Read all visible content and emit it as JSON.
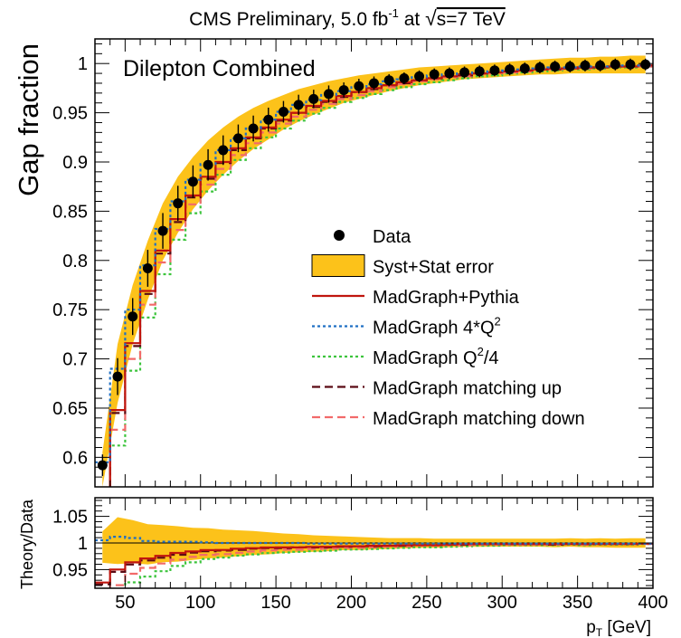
{
  "chart_data": {
    "type": "line",
    "title": "CMS Preliminary, 5.0 fb",
    "title_sup": "-1",
    "title_tail": " at ",
    "title_sqrt": "√",
    "title_energy": "s=7 TeV",
    "label": "Dilepton Combined",
    "ylabel": "Gap fraction",
    "ratio_ylabel": "Theory/Data",
    "xlabel": "p",
    "xlabel_sub": "T",
    "xlabel_unit": " [GeV]",
    "xlim": [
      30,
      400
    ],
    "ylim": [
      0.57,
      1.025
    ],
    "ratio_ylim": [
      0.915,
      1.085
    ],
    "x_ticks": [
      50,
      100,
      150,
      200,
      250,
      300,
      350,
      400
    ],
    "y_ticks": [
      0.6,
      0.65,
      0.7,
      0.75,
      0.8,
      0.85,
      0.9,
      0.95,
      1
    ],
    "ratio_y_ticks": [
      0.95,
      1,
      1.05
    ],
    "colors": {
      "band": "#fcc21a",
      "data": "#000000",
      "madgraph_pythia": "#c0150e",
      "q2x4": "#1f6fc4",
      "q2div4": "#3cc43c",
      "matching_up": "#5a0a14",
      "matching_down": "#f26a6a"
    },
    "legend": {
      "placement": "right",
      "entries": [
        {
          "key": "data",
          "label": "Data"
        },
        {
          "key": "band",
          "label": "Syst+Stat error"
        },
        {
          "key": "madgraph_pythia",
          "label": "MadGraph+Pythia"
        },
        {
          "key": "q2x4",
          "label": "MadGraph 4*Q",
          "sup": "2"
        },
        {
          "key": "q2div4",
          "label": "MadGraph Q",
          "sup": "2",
          "tail": "/4"
        },
        {
          "key": "matching_up",
          "label": "MadGraph matching up"
        },
        {
          "key": "matching_down",
          "label": "MadGraph matching down"
        }
      ]
    },
    "x": [
      35,
      45,
      55,
      65,
      75,
      85,
      95,
      105,
      115,
      125,
      135,
      145,
      155,
      165,
      175,
      185,
      195,
      205,
      215,
      225,
      235,
      245,
      255,
      265,
      275,
      285,
      295,
      305,
      315,
      325,
      335,
      345,
      355,
      365,
      375,
      385,
      395
    ],
    "series": [
      {
        "key": "data",
        "style": "points",
        "values": [
          0.592,
          0.682,
          0.743,
          0.792,
          0.83,
          0.858,
          0.88,
          0.897,
          0.912,
          0.924,
          0.934,
          0.943,
          0.951,
          0.958,
          0.964,
          0.969,
          0.973,
          0.977,
          0.98,
          0.983,
          0.985,
          0.987,
          0.989,
          0.99,
          0.991,
          0.992,
          0.993,
          0.994,
          0.995,
          0.996,
          0.997,
          0.997,
          0.998,
          0.998,
          0.999,
          0.999,
          0.999
        ]
      },
      {
        "key": "band",
        "style": "band",
        "lower": [
          0.57,
          0.655,
          0.715,
          0.76,
          0.8,
          0.828,
          0.852,
          0.871,
          0.887,
          0.901,
          0.913,
          0.923,
          0.933,
          0.941,
          0.948,
          0.954,
          0.96,
          0.964,
          0.968,
          0.972,
          0.975,
          0.978,
          0.98,
          0.982,
          0.984,
          0.985,
          0.986,
          0.987,
          0.988,
          0.989,
          0.989,
          0.99,
          0.99,
          0.99,
          0.99,
          0.99,
          0.99
        ],
        "upper": [
          0.605,
          0.715,
          0.775,
          0.82,
          0.858,
          0.885,
          0.905,
          0.922,
          0.935,
          0.946,
          0.955,
          0.962,
          0.968,
          0.974,
          0.978,
          0.982,
          0.985,
          0.988,
          0.99,
          0.992,
          0.994,
          0.996,
          0.997,
          0.998,
          0.999,
          1.0,
          1.001,
          1.002,
          1.003,
          1.004,
          1.005,
          1.006,
          1.006,
          1.007,
          1.007,
          1.008,
          1.008
        ]
      },
      {
        "key": "madgraph_pythia",
        "style": "solid",
        "values": [
          0.548,
          0.648,
          0.716,
          0.769,
          0.81,
          0.842,
          0.866,
          0.885,
          0.9,
          0.914,
          0.925,
          0.935,
          0.943,
          0.95,
          0.957,
          0.962,
          0.967,
          0.971,
          0.975,
          0.978,
          0.981,
          0.983,
          0.985,
          0.987,
          0.989,
          0.99,
          0.991,
          0.992,
          0.993,
          0.994,
          0.995,
          0.995,
          0.996,
          0.996,
          0.997,
          0.997,
          0.998
        ]
      },
      {
        "key": "q2x4",
        "style": "dotted",
        "values": [
          0.595,
          0.69,
          0.75,
          0.795,
          0.832,
          0.86,
          0.882,
          0.898,
          0.912,
          0.924,
          0.934,
          0.943,
          0.951,
          0.958,
          0.963,
          0.968,
          0.972,
          0.976,
          0.979,
          0.982,
          0.984,
          0.986,
          0.988,
          0.989,
          0.99,
          0.991,
          0.992,
          0.993,
          0.994,
          0.995,
          0.996,
          0.996,
          0.997,
          0.997,
          0.998,
          0.998,
          0.998
        ]
      },
      {
        "key": "q2div4",
        "style": "dotted",
        "values": [
          0.53,
          0.612,
          0.688,
          0.742,
          0.786,
          0.821,
          0.848,
          0.87,
          0.887,
          0.902,
          0.914,
          0.925,
          0.934,
          0.942,
          0.949,
          0.955,
          0.961,
          0.965,
          0.969,
          0.973,
          0.976,
          0.979,
          0.981,
          0.983,
          0.985,
          0.987,
          0.988,
          0.99,
          0.991,
          0.992,
          0.993,
          0.994,
          0.994,
          0.995,
          0.996,
          0.996,
          0.997
        ]
      },
      {
        "key": "matching_up",
        "style": "dashed",
        "values": [
          0.546,
          0.645,
          0.713,
          0.766,
          0.807,
          0.839,
          0.864,
          0.883,
          0.899,
          0.912,
          0.924,
          0.934,
          0.942,
          0.95,
          0.956,
          0.961,
          0.966,
          0.971,
          0.974,
          0.978,
          0.98,
          0.983,
          0.985,
          0.987,
          0.988,
          0.99,
          0.991,
          0.992,
          0.993,
          0.994,
          0.994,
          0.995,
          0.996,
          0.996,
          0.997,
          0.997,
          0.998
        ]
      },
      {
        "key": "matching_down",
        "style": "dashed",
        "values": [
          0.54,
          0.628,
          0.7,
          0.755,
          0.798,
          0.831,
          0.857,
          0.877,
          0.893,
          0.907,
          0.919,
          0.93,
          0.939,
          0.946,
          0.953,
          0.959,
          0.964,
          0.968,
          0.972,
          0.976,
          0.979,
          0.982,
          0.984,
          0.986,
          0.987,
          0.989,
          0.99,
          0.991,
          0.992,
          0.993,
          0.994,
          0.995,
          0.995,
          0.996,
          0.997,
          0.997,
          0.997
        ]
      }
    ]
  }
}
